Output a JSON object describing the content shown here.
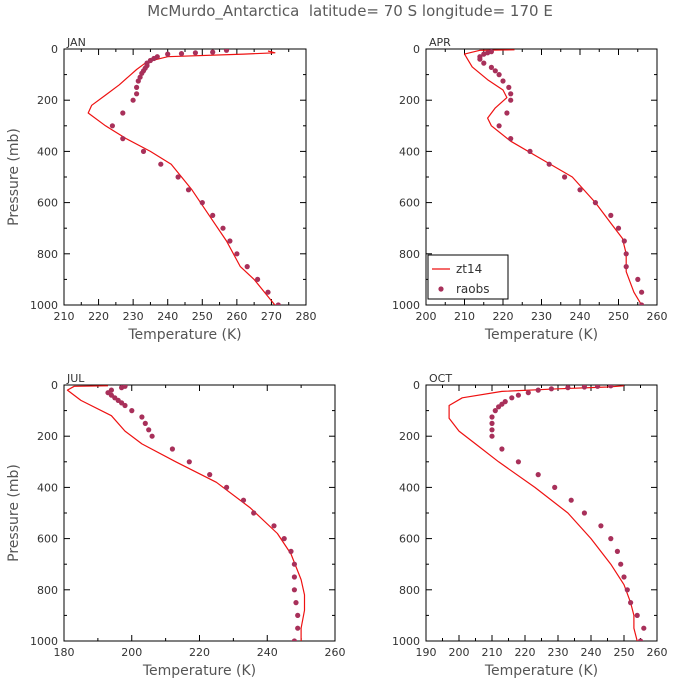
{
  "title": "McMurdo_Antarctica  latitude= 70 S longitude= 170 E",
  "colors": {
    "model": "#ee1111",
    "obs": "#a8305a",
    "axis": "#000000"
  },
  "chart_data": [
    {
      "type": "line",
      "month": "JAN",
      "xlabel": "Temperature (K)",
      "ylabel": "Pressure (mb)",
      "xlim": [
        210,
        280
      ],
      "xticks": [
        210,
        220,
        230,
        240,
        250,
        260,
        270,
        280
      ],
      "ylim": [
        0,
        1000
      ],
      "yticks": [
        0,
        200,
        400,
        600,
        800,
        1000
      ],
      "y_inverted": true,
      "legend": null,
      "series": [
        {
          "name": "zt14",
          "kind": "line",
          "points": [
            [
              271,
              1000
            ],
            [
              268,
              950
            ],
            [
              265,
              900
            ],
            [
              261,
              850
            ],
            [
              257,
              750
            ],
            [
              252,
              650
            ],
            [
              247,
              550
            ],
            [
              241,
              450
            ],
            [
              235,
              400
            ],
            [
              228,
              350
            ],
            [
              222,
              300
            ],
            [
              217,
              250
            ],
            [
              218,
              220
            ],
            [
              222,
              180
            ],
            [
              226,
              140
            ],
            [
              231,
              80
            ],
            [
              234,
              50
            ],
            [
              240,
              30
            ],
            [
              262,
              20
            ],
            [
              271,
              15
            ],
            [
              269,
              8
            ]
          ]
        },
        {
          "name": "raobs",
          "kind": "scatter",
          "points": [
            [
              272,
              1000
            ],
            [
              269,
              950
            ],
            [
              266,
              900
            ],
            [
              263,
              850
            ],
            [
              260,
              800
            ],
            [
              258,
              750
            ],
            [
              256,
              700
            ],
            [
              253,
              650
            ],
            [
              250,
              600
            ],
            [
              246,
              550
            ],
            [
              243,
              500
            ],
            [
              238,
              450
            ],
            [
              233,
              400
            ],
            [
              227,
              350
            ],
            [
              224,
              300
            ],
            [
              227,
              250
            ],
            [
              230,
              200
            ],
            [
              231,
              175
            ],
            [
              231,
              150
            ],
            [
              231.5,
              125
            ],
            [
              232,
              110
            ],
            [
              232.5,
              95
            ],
            [
              233,
              85
            ],
            [
              233.5,
              75
            ],
            [
              234,
              65
            ],
            [
              234,
              55
            ],
            [
              235,
              45
            ],
            [
              236,
              37
            ],
            [
              237,
              30
            ],
            [
              240,
              20
            ],
            [
              244,
              18
            ],
            [
              248,
              15
            ],
            [
              253,
              12
            ],
            [
              257,
              5
            ]
          ]
        }
      ]
    },
    {
      "type": "line",
      "month": "APR",
      "xlabel": "Temperature (K)",
      "ylabel": "",
      "xlim": [
        200,
        260
      ],
      "xticks": [
        200,
        210,
        220,
        230,
        240,
        250,
        260
      ],
      "ylim": [
        0,
        1000
      ],
      "yticks": [
        0,
        200,
        400,
        600,
        800,
        1000
      ],
      "y_inverted": true,
      "legend": {
        "location": "bottom-left",
        "entries": [
          "zt14",
          "raobs"
        ]
      },
      "series": [
        {
          "name": "zt14",
          "kind": "line",
          "points": [
            [
              256,
              1000
            ],
            [
              254,
              950
            ],
            [
              252,
              870
            ],
            [
              252,
              800
            ],
            [
              251,
              740
            ],
            [
              248,
              680
            ],
            [
              244,
              600
            ],
            [
              238,
              500
            ],
            [
              230,
              430
            ],
            [
              222,
              360
            ],
            [
              217,
              300
            ],
            [
              216,
              270
            ],
            [
              218,
              230
            ],
            [
              221,
              190
            ],
            [
              220,
              160
            ],
            [
              216,
              120
            ],
            [
              212,
              70
            ],
            [
              210,
              20
            ],
            [
              214,
              5
            ],
            [
              223,
              3
            ]
          ]
        },
        {
          "name": "raobs",
          "kind": "scatter",
          "points": [
            [
              256,
              1000
            ],
            [
              256,
              950
            ],
            [
              255,
              900
            ],
            [
              252,
              850
            ],
            [
              252,
              800
            ],
            [
              251.5,
              750
            ],
            [
              250,
              700
            ],
            [
              248,
              650
            ],
            [
              244,
              600
            ],
            [
              240,
              550
            ],
            [
              236,
              500
            ],
            [
              232,
              450
            ],
            [
              227,
              400
            ],
            [
              222,
              350
            ],
            [
              219,
              300
            ],
            [
              221,
              250
            ],
            [
              222,
              200
            ],
            [
              222,
              175
            ],
            [
              221.5,
              150
            ],
            [
              220,
              125
            ],
            [
              219,
              100
            ],
            [
              218,
              85
            ],
            [
              217,
              72
            ],
            [
              215,
              55
            ],
            [
              214,
              40
            ],
            [
              214,
              30
            ],
            [
              215,
              20
            ],
            [
              216,
              15
            ],
            [
              217,
              10
            ]
          ]
        }
      ]
    },
    {
      "type": "line",
      "month": "JUL",
      "xlabel": "Temperature (K)",
      "ylabel": "Pressure (mb)",
      "xlim": [
        180,
        260
      ],
      "xticks": [
        180,
        200,
        220,
        240,
        260
      ],
      "ylim": [
        0,
        1000
      ],
      "yticks": [
        0,
        200,
        400,
        600,
        800,
        1000
      ],
      "y_inverted": true,
      "legend": null,
      "series": [
        {
          "name": "zt14",
          "kind": "line",
          "points": [
            [
              250,
              1000
            ],
            [
              250,
              950
            ],
            [
              251,
              880
            ],
            [
              251,
              820
            ],
            [
              250,
              760
            ],
            [
              247,
              660
            ],
            [
              243,
              580
            ],
            [
              235,
              480
            ],
            [
              225,
              380
            ],
            [
              213,
              300
            ],
            [
              203,
              230
            ],
            [
              198,
              180
            ],
            [
              194,
              120
            ],
            [
              185,
              60
            ],
            [
              181,
              20
            ],
            [
              183,
              5
            ],
            [
              193,
              3
            ]
          ]
        },
        {
          "name": "raobs",
          "kind": "scatter",
          "points": [
            [
              248,
              1000
            ],
            [
              249,
              950
            ],
            [
              249,
              900
            ],
            [
              248.5,
              850
            ],
            [
              248,
              800
            ],
            [
              248,
              750
            ],
            [
              248,
              700
            ],
            [
              247,
              650
            ],
            [
              245,
              600
            ],
            [
              242,
              550
            ],
            [
              236,
              500
            ],
            [
              233,
              450
            ],
            [
              228,
              400
            ],
            [
              223,
              350
            ],
            [
              217,
              300
            ],
            [
              212,
              250
            ],
            [
              206,
              200
            ],
            [
              205,
              175
            ],
            [
              204,
              150
            ],
            [
              203,
              125
            ],
            [
              200,
              100
            ],
            [
              198,
              80
            ],
            [
              197,
              70
            ],
            [
              196,
              60
            ],
            [
              195,
              50
            ],
            [
              194,
              40
            ],
            [
              193,
              30
            ],
            [
              194,
              20
            ],
            [
              197,
              10
            ],
            [
              198,
              5
            ]
          ]
        }
      ]
    },
    {
      "type": "line",
      "month": "OCT",
      "xlabel": "Temperature (K)",
      "ylabel": "",
      "xlim": [
        190,
        260
      ],
      "xticks": [
        190,
        200,
        210,
        220,
        230,
        240,
        250,
        260
      ],
      "ylim": [
        0,
        1000
      ],
      "yticks": [
        0,
        200,
        400,
        600,
        800,
        1000
      ],
      "y_inverted": true,
      "legend": null,
      "series": [
        {
          "name": "zt14",
          "kind": "line",
          "points": [
            [
              254,
              1000
            ],
            [
              253,
              950
            ],
            [
              253,
              900
            ],
            [
              252,
              850
            ],
            [
              250,
              780
            ],
            [
              246,
              700
            ],
            [
              240,
              600
            ],
            [
              233,
              500
            ],
            [
              223,
              400
            ],
            [
              212,
              300
            ],
            [
              205,
              230
            ],
            [
              200,
              180
            ],
            [
              197,
              130
            ],
            [
              197,
              80
            ],
            [
              201,
              50
            ],
            [
              213,
              25
            ],
            [
              230,
              15
            ],
            [
              245,
              8
            ],
            [
              250,
              3
            ]
          ]
        },
        {
          "name": "raobs",
          "kind": "scatter",
          "points": [
            [
              255,
              1000
            ],
            [
              256,
              950
            ],
            [
              254,
              900
            ],
            [
              252,
              850
            ],
            [
              251,
              800
            ],
            [
              250,
              750
            ],
            [
              249,
              700
            ],
            [
              248,
              650
            ],
            [
              246,
              600
            ],
            [
              243,
              550
            ],
            [
              238,
              500
            ],
            [
              234,
              450
            ],
            [
              229,
              400
            ],
            [
              224,
              350
            ],
            [
              218,
              300
            ],
            [
              213,
              250
            ],
            [
              210,
              200
            ],
            [
              210,
              175
            ],
            [
              210,
              150
            ],
            [
              210,
              125
            ],
            [
              211,
              100
            ],
            [
              212,
              85
            ],
            [
              213,
              75
            ],
            [
              214,
              65
            ],
            [
              216,
              50
            ],
            [
              218,
              40
            ],
            [
              221,
              30
            ],
            [
              224,
              20
            ],
            [
              228,
              15
            ],
            [
              233,
              10
            ],
            [
              238,
              8
            ],
            [
              242,
              5
            ],
            [
              246,
              3
            ]
          ]
        }
      ]
    }
  ]
}
